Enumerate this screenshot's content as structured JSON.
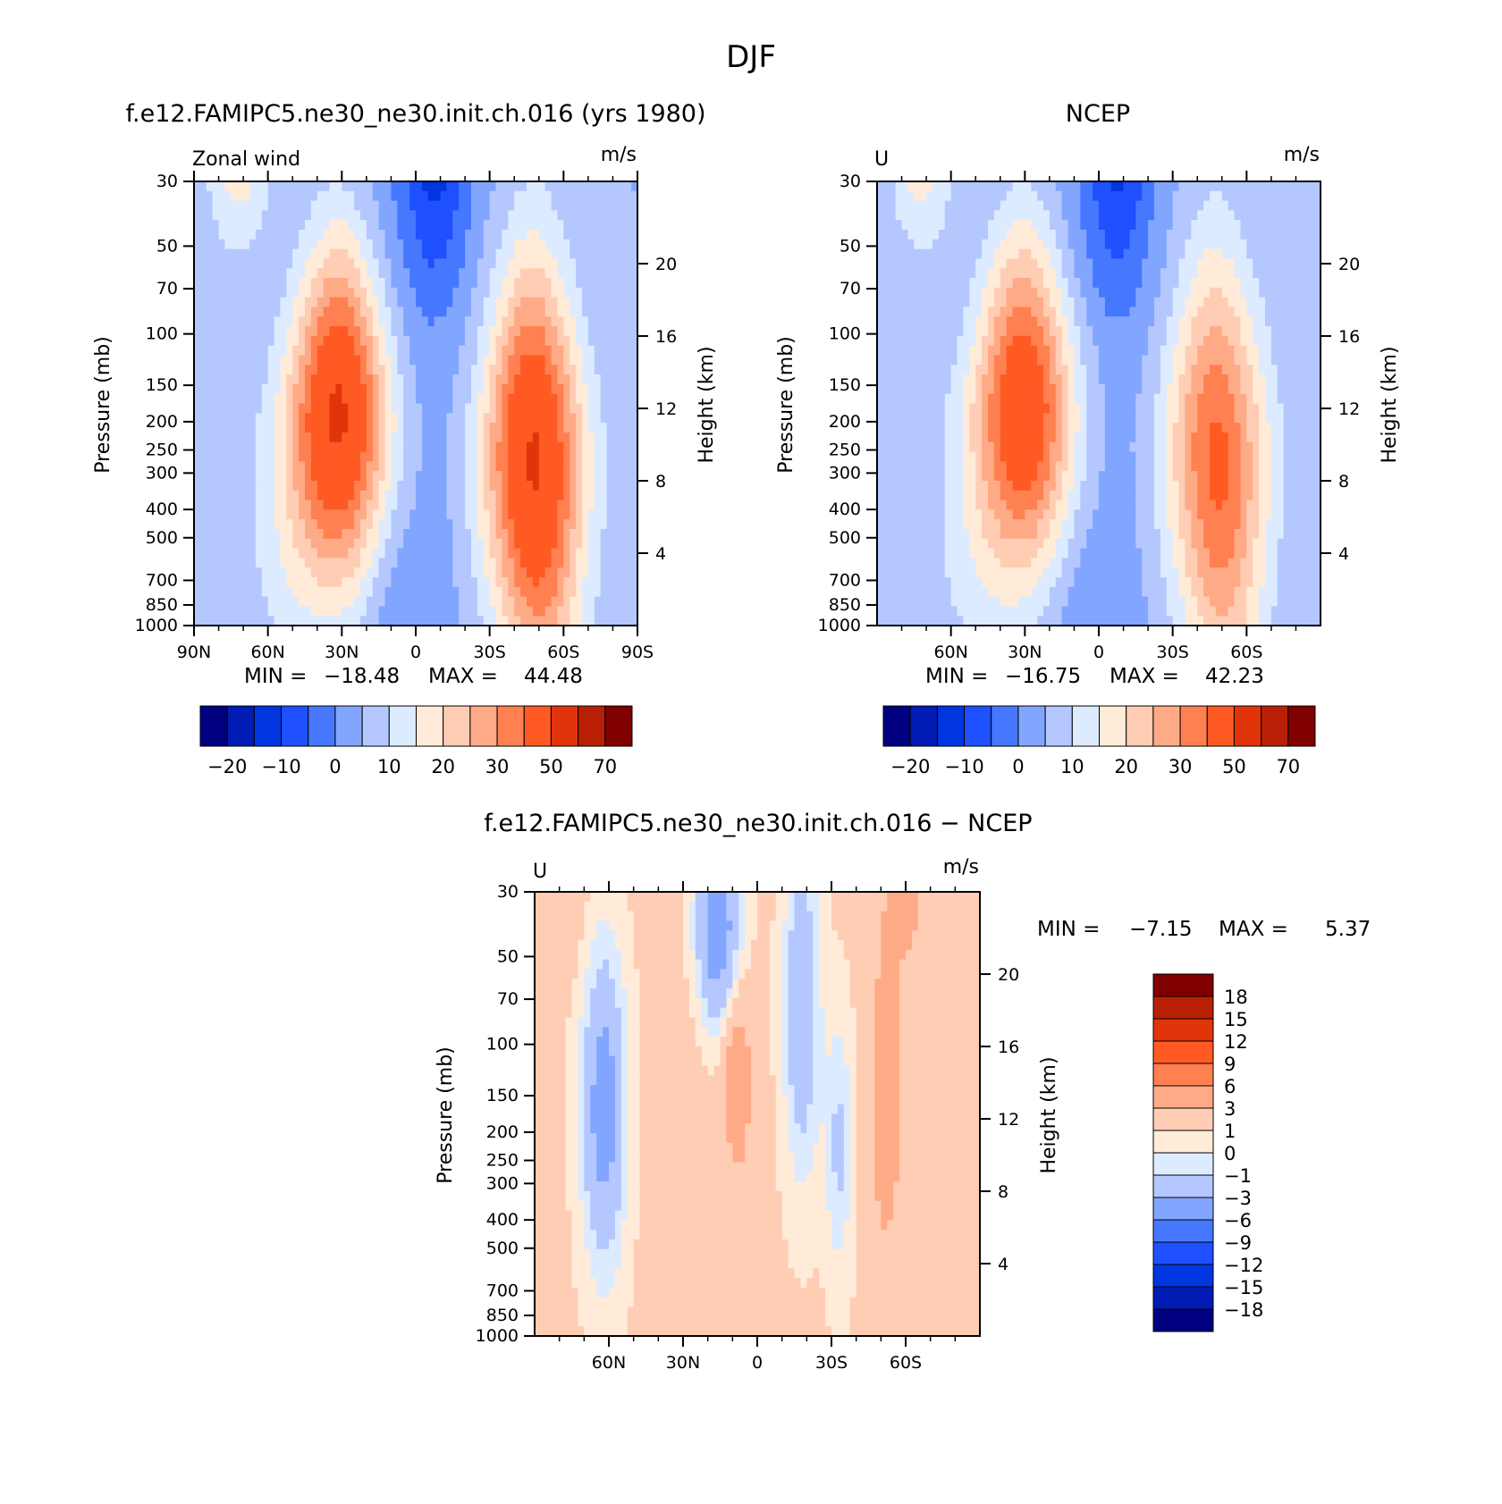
{
  "figure": {
    "title": "DJF"
  },
  "chart_data": [
    {
      "type": "heatmap",
      "panel": "model",
      "title": "f.e12.FAMIPC5.ne30_ne30.init.ch.016 (yrs 1980)",
      "variable": "Zonal wind",
      "units": "m/s",
      "ylabel": "Pressure (mb)",
      "y2label": "Height (km)",
      "x_ticks": [
        "90N",
        "60N",
        "30N",
        "0",
        "30S",
        "60S",
        "90S"
      ],
      "x_tick_values": [
        90,
        60,
        30,
        0,
        -30,
        -60,
        -90
      ],
      "xlim": [
        90,
        -90
      ],
      "y_ticks": [
        "30",
        "50",
        "70",
        "100",
        "150",
        "200",
        "250",
        "300",
        "400",
        "500",
        "700",
        "850",
        "1000"
      ],
      "y_tick_values": [
        30,
        50,
        70,
        100,
        150,
        200,
        250,
        300,
        400,
        500,
        700,
        850,
        1000
      ],
      "ylim": [
        1000,
        30
      ],
      "y_scale": "log",
      "y2_ticks": [
        "20",
        "16",
        "12",
        "8",
        "4"
      ],
      "y2_tick_values": [
        20,
        16,
        12,
        8,
        4
      ],
      "min_label": "MIN =",
      "min_value": "−18.48",
      "max_label": "MAX =",
      "max_value": "44.48",
      "jets": [
        {
          "lat": 31,
          "p": 190,
          "peak": 44.48
        },
        {
          "lat": -47,
          "p": 240,
          "peak": 40
        }
      ],
      "colorbar": {
        "orientation": "horizontal",
        "levels": [
          -25,
          -20,
          -15,
          -10,
          -5,
          0,
          5,
          10,
          15,
          20,
          25,
          30,
          40,
          50,
          60,
          70
        ],
        "tick_labels": [
          "−20",
          "−10",
          "0",
          "10",
          "20",
          "30",
          "50",
          "70"
        ]
      }
    },
    {
      "type": "heatmap",
      "panel": "obs",
      "title": "NCEP",
      "variable": "U",
      "units": "m/s",
      "ylabel": "Pressure (mb)",
      "y2label": "Height (km)",
      "x_ticks": [
        "60N",
        "30N",
        "0",
        "30S",
        "60S"
      ],
      "x_tick_values": [
        60,
        30,
        0,
        -30,
        -60
      ],
      "xlim": [
        90,
        -90
      ],
      "y_ticks": [
        "30",
        "50",
        "70",
        "100",
        "150",
        "200",
        "250",
        "300",
        "400",
        "500",
        "700",
        "850",
        "1000"
      ],
      "y_tick_values": [
        30,
        50,
        70,
        100,
        150,
        200,
        250,
        300,
        400,
        500,
        700,
        850,
        1000
      ],
      "ylim": [
        1000,
        30
      ],
      "y_scale": "log",
      "y2_ticks": [
        "20",
        "16",
        "12",
        "8",
        "4"
      ],
      "y2_tick_values": [
        20,
        16,
        12,
        8,
        4
      ],
      "min_label": "MIN =",
      "min_value": "−16.75",
      "max_label": "MAX =",
      "max_value": "42.23",
      "jets": [
        {
          "lat": 30,
          "p": 180,
          "peak": 42.23
        },
        {
          "lat": -47,
          "p": 230,
          "peak": 32
        }
      ],
      "colorbar": {
        "orientation": "horizontal",
        "levels": [
          -25,
          -20,
          -15,
          -10,
          -5,
          0,
          5,
          10,
          15,
          20,
          25,
          30,
          40,
          50,
          60,
          70
        ],
        "tick_labels": [
          "−20",
          "−10",
          "0",
          "10",
          "20",
          "30",
          "50",
          "70"
        ]
      }
    },
    {
      "type": "heatmap",
      "panel": "diff",
      "title": "f.e12.FAMIPC5.ne30_ne30.init.ch.016 − NCEP",
      "variable": "U",
      "units": "m/s",
      "ylabel": "Pressure (mb)",
      "y2label": "Height (km)",
      "x_ticks": [
        "60N",
        "30N",
        "0",
        "30S",
        "60S"
      ],
      "x_tick_values": [
        60,
        30,
        0,
        -30,
        -60
      ],
      "xlim": [
        90,
        -90
      ],
      "y_ticks": [
        "30",
        "50",
        "70",
        "100",
        "150",
        "200",
        "250",
        "300",
        "400",
        "500",
        "700",
        "850",
        "1000"
      ],
      "y_tick_values": [
        30,
        50,
        70,
        100,
        150,
        200,
        250,
        300,
        400,
        500,
        700,
        850,
        1000
      ],
      "ylim": [
        1000,
        30
      ],
      "y_scale": "log",
      "y2_ticks": [
        "20",
        "16",
        "12",
        "8",
        "4"
      ],
      "y2_tick_values": [
        20,
        16,
        12,
        8,
        4
      ],
      "min_label": "MIN =",
      "min_value": "−7.15",
      "max_label": "MAX =",
      "max_value": "5.37",
      "colorbar": {
        "orientation": "vertical",
        "levels": [
          -18,
          -15,
          -12,
          -9,
          -6,
          -3,
          -1,
          0,
          1,
          3,
          6,
          9,
          12,
          15,
          18
        ],
        "tick_labels": [
          "18",
          "15",
          "12",
          "9",
          "6",
          "3",
          "1",
          "0",
          "−1",
          "−3",
          "−6",
          "−9",
          "−12",
          "−15",
          "−18"
        ]
      }
    }
  ],
  "palettes": {
    "full": [
      "#000080",
      "#001cb4",
      "#0036e0",
      "#1e50ff",
      "#4678ff",
      "#82a6ff",
      "#b4c8ff",
      "#dcebff",
      "#ffebd8",
      "#ffcdb4",
      "#ffaa86",
      "#ff8050",
      "#ff5a23",
      "#e1340b",
      "#b91f05",
      "#800000"
    ],
    "diff": [
      "#000080",
      "#001cb4",
      "#0036e0",
      "#1e50ff",
      "#4678ff",
      "#82a6ff",
      "#b4c8ff",
      "#dcebff",
      "#ffebd8",
      "#ffcdb4",
      "#ffaa86",
      "#ff8050",
      "#ff5a23",
      "#e1340b",
      "#b91f05",
      "#800000"
    ]
  }
}
